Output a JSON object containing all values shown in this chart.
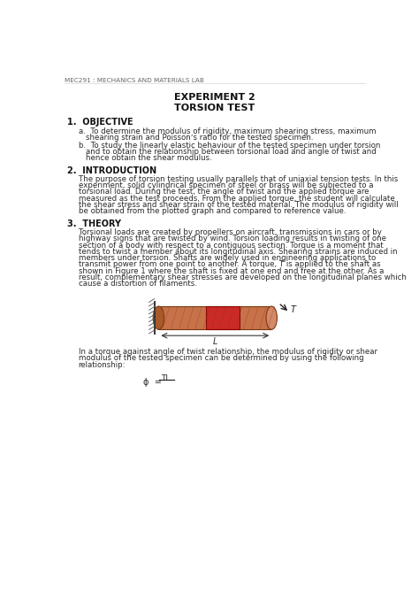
{
  "header": "MEC291 : MECHANICS AND MATERIALS LAB",
  "title1": "EXPERIMENT 2",
  "title2": "TORSION TEST",
  "section1_heading": "1.  OBJECTIVE",
  "section2_heading": "2.  INTRODUCTION",
  "section3_heading": "3.  THEORY",
  "bg_color": "#ffffff",
  "text_color": "#2a2a2a",
  "header_color": "#666666",
  "bold_color": "#111111"
}
